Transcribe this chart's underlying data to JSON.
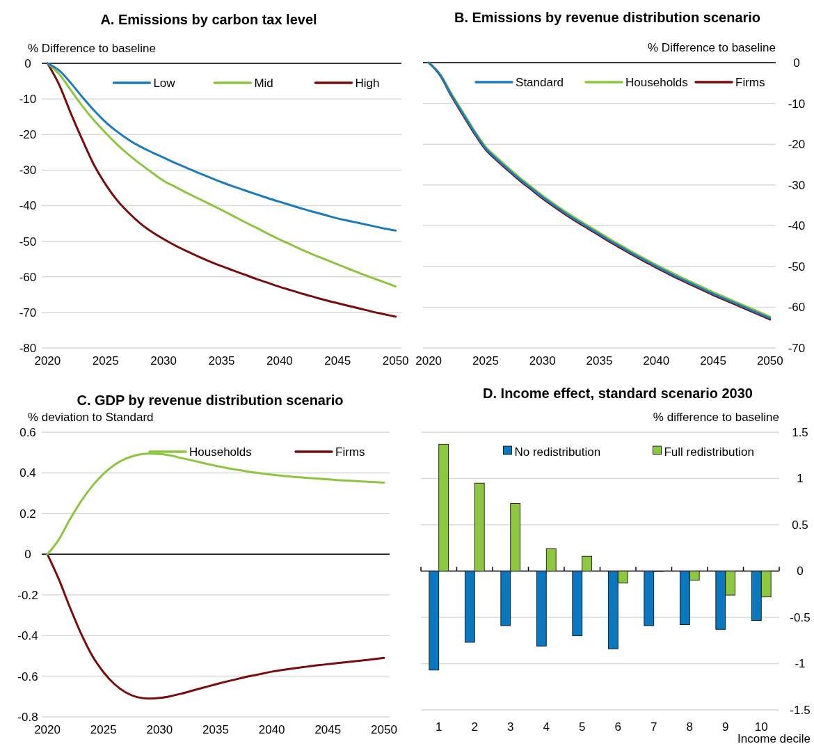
{
  "chart_data": [
    {
      "type": "line",
      "title": "A. Emissions by carbon tax level",
      "ylabel": "% Difference to baseline",
      "x": [
        2020,
        2021,
        2022,
        2023,
        2024,
        2025,
        2026,
        2027,
        2028,
        2029,
        2030,
        2031,
        2032,
        2033,
        2034,
        2035,
        2036,
        2037,
        2038,
        2039,
        2040,
        2041,
        2042,
        2043,
        2044,
        2045,
        2046,
        2047,
        2048,
        2049,
        2050
      ],
      "xlim": [
        2019.5,
        2050.5
      ],
      "xticks": [
        2020,
        2025,
        2030,
        2035,
        2040,
        2045,
        2050
      ],
      "ylim": [
        -80,
        0
      ],
      "yticks": [
        -80,
        -70,
        -60,
        -50,
        -40,
        -30,
        -20,
        -10,
        0
      ],
      "grid": "y",
      "legend": "top",
      "series": [
        {
          "name": "Low",
          "color": "#1a7bc0",
          "values": [
            0,
            -2,
            -5.5,
            -9.5,
            -13.2,
            -16.5,
            -19.2,
            -21.5,
            -23.4,
            -25,
            -26.5,
            -28,
            -29.4,
            -30.8,
            -32.1,
            -33.4,
            -34.6,
            -35.7,
            -36.8,
            -37.9,
            -38.9,
            -39.9,
            -40.9,
            -41.8,
            -42.7,
            -43.6,
            -44.3,
            -45,
            -45.7,
            -46.4,
            -47
          ]
        },
        {
          "name": "Mid",
          "color": "#8cc63f",
          "values": [
            0,
            -3,
            -7.5,
            -12,
            -16,
            -19.5,
            -22.8,
            -25.7,
            -28.3,
            -30.7,
            -33,
            -34.7,
            -36.4,
            -38,
            -39.6,
            -41.2,
            -42.9,
            -44.6,
            -46.2,
            -47.9,
            -49.5,
            -51,
            -52.5,
            -53.9,
            -55.2,
            -56.5,
            -57.8,
            -59.1,
            -60.3,
            -61.5,
            -62.7
          ]
        },
        {
          "name": "High",
          "color": "#7b0c0c",
          "values": [
            0,
            -6,
            -14,
            -21.5,
            -28.5,
            -34,
            -38.5,
            -42,
            -45,
            -47.4,
            -49.4,
            -51.2,
            -52.8,
            -54.3,
            -55.7,
            -57,
            -58.2,
            -59.4,
            -60.6,
            -61.7,
            -62.8,
            -63.8,
            -64.8,
            -65.7,
            -66.6,
            -67.4,
            -68.2,
            -69,
            -69.8,
            -70.5,
            -71.2
          ]
        }
      ]
    },
    {
      "type": "line",
      "title": "B. Emissions by revenue distribution scenario",
      "ylabel": "% Difference to baseline",
      "x": [
        2020,
        2021,
        2022,
        2023,
        2024,
        2025,
        2026,
        2027,
        2028,
        2029,
        2030,
        2031,
        2032,
        2033,
        2034,
        2035,
        2036,
        2037,
        2038,
        2039,
        2040,
        2041,
        2042,
        2043,
        2044,
        2045,
        2046,
        2047,
        2048,
        2049,
        2050
      ],
      "xlim": [
        2019.5,
        2050.5
      ],
      "xticks": [
        2020,
        2025,
        2030,
        2035,
        2040,
        2045,
        2050
      ],
      "ylim": [
        -70,
        0
      ],
      "yticks": [
        -70,
        -60,
        -50,
        -40,
        -30,
        -20,
        -10,
        0
      ],
      "grid": "y",
      "legend": "top",
      "series": [
        {
          "name": "Standard",
          "color": "#1a7bc0",
          "values": [
            0,
            -3,
            -8,
            -12.5,
            -17,
            -21,
            -23.7,
            -26.2,
            -28.6,
            -30.8,
            -33,
            -35,
            -36.9,
            -38.7,
            -40.4,
            -42.1,
            -43.8,
            -45.4,
            -47,
            -48.5,
            -50,
            -51.4,
            -52.8,
            -54.1,
            -55.4,
            -56.7,
            -57.9,
            -59.1,
            -60.3,
            -61.5,
            -62.7
          ]
        },
        {
          "name": "Households",
          "color": "#8cc63f",
          "values": [
            0,
            -2.8,
            -7.6,
            -12.1,
            -16.6,
            -20.6,
            -23.3,
            -25.8,
            -28.2,
            -30.4,
            -32.6,
            -34.6,
            -36.5,
            -38.3,
            -40,
            -41.7,
            -43.4,
            -45,
            -46.6,
            -48.1,
            -49.6,
            -51,
            -52.4,
            -53.7,
            -55,
            -56.3,
            -57.5,
            -58.7,
            -59.9,
            -61.1,
            -62.3
          ]
        },
        {
          "name": "Firms",
          "color": "#7b0c0c",
          "values": [
            0,
            -3.1,
            -8.2,
            -12.8,
            -17.3,
            -21.3,
            -24,
            -26.5,
            -28.9,
            -31.1,
            -33.3,
            -35.3,
            -37.2,
            -39,
            -40.7,
            -42.4,
            -44.1,
            -45.7,
            -47.3,
            -48.8,
            -50.3,
            -51.7,
            -53.1,
            -54.4,
            -55.7,
            -57,
            -58.2,
            -59.4,
            -60.6,
            -61.8,
            -63
          ]
        }
      ]
    },
    {
      "type": "line",
      "title": "C. GDP by revenue distribution scenario",
      "ylabel": "% deviation to Standard",
      "x": [
        2020,
        2021,
        2022,
        2023,
        2024,
        2025,
        2026,
        2027,
        2028,
        2029,
        2030,
        2031,
        2032,
        2033,
        2034,
        2035,
        2036,
        2037,
        2038,
        2039,
        2040,
        2041,
        2042,
        2043,
        2044,
        2045,
        2046,
        2047,
        2048,
        2049,
        2050
      ],
      "xlim": [
        2019.5,
        2050.5
      ],
      "xticks": [
        2020,
        2025,
        2030,
        2035,
        2040,
        2045,
        2050
      ],
      "ylim": [
        -0.8,
        0.6
      ],
      "yticks": [
        -0.8,
        -0.6,
        -0.4,
        -0.2,
        0,
        0.2,
        0.4,
        0.6
      ],
      "grid": "y",
      "legend": "top",
      "series": [
        {
          "name": "Households",
          "color": "#8cc63f",
          "values": [
            0,
            0.07,
            0.17,
            0.26,
            0.335,
            0.395,
            0.44,
            0.47,
            0.488,
            0.495,
            0.493,
            0.485,
            0.472,
            0.46,
            0.447,
            0.435,
            0.424,
            0.414,
            0.405,
            0.398,
            0.391,
            0.385,
            0.38,
            0.376,
            0.372,
            0.368,
            0.364,
            0.361,
            0.358,
            0.355,
            0.352
          ]
        },
        {
          "name": "Firms",
          "color": "#7b0c0c",
          "values": [
            0,
            -0.12,
            -0.26,
            -0.39,
            -0.5,
            -0.58,
            -0.64,
            -0.68,
            -0.703,
            -0.71,
            -0.707,
            -0.698,
            -0.685,
            -0.67,
            -0.655,
            -0.64,
            -0.626,
            -0.613,
            -0.6,
            -0.589,
            -0.578,
            -0.569,
            -0.561,
            -0.554,
            -0.547,
            -0.541,
            -0.535,
            -0.529,
            -0.523,
            -0.517,
            -0.51
          ]
        }
      ]
    },
    {
      "type": "bar",
      "title": "D. Income effect, standard scenario 2030",
      "ylabel": "% difference to baseline",
      "xlabel": "Income decile",
      "categories": [
        "1",
        "2",
        "3",
        "4",
        "5",
        "6",
        "7",
        "8",
        "9",
        "10"
      ],
      "ylim": [
        -1.5,
        1.5
      ],
      "yticks": [
        -1.5,
        -1,
        -0.5,
        0,
        0.5,
        1,
        1.5
      ],
      "grid": "y",
      "legend": "top",
      "series": [
        {
          "name": "No redistribution",
          "color": "#0b77be",
          "values": [
            -1.07,
            -0.77,
            -0.59,
            -0.81,
            -0.7,
            -0.84,
            -0.59,
            -0.58,
            -0.63,
            -0.535
          ]
        },
        {
          "name": "Full redistribution",
          "color": "#8dc63f",
          "values": [
            1.37,
            0.95,
            0.73,
            0.24,
            0.16,
            -0.13,
            0,
            -0.1,
            -0.26,
            -0.28
          ]
        }
      ]
    }
  ]
}
